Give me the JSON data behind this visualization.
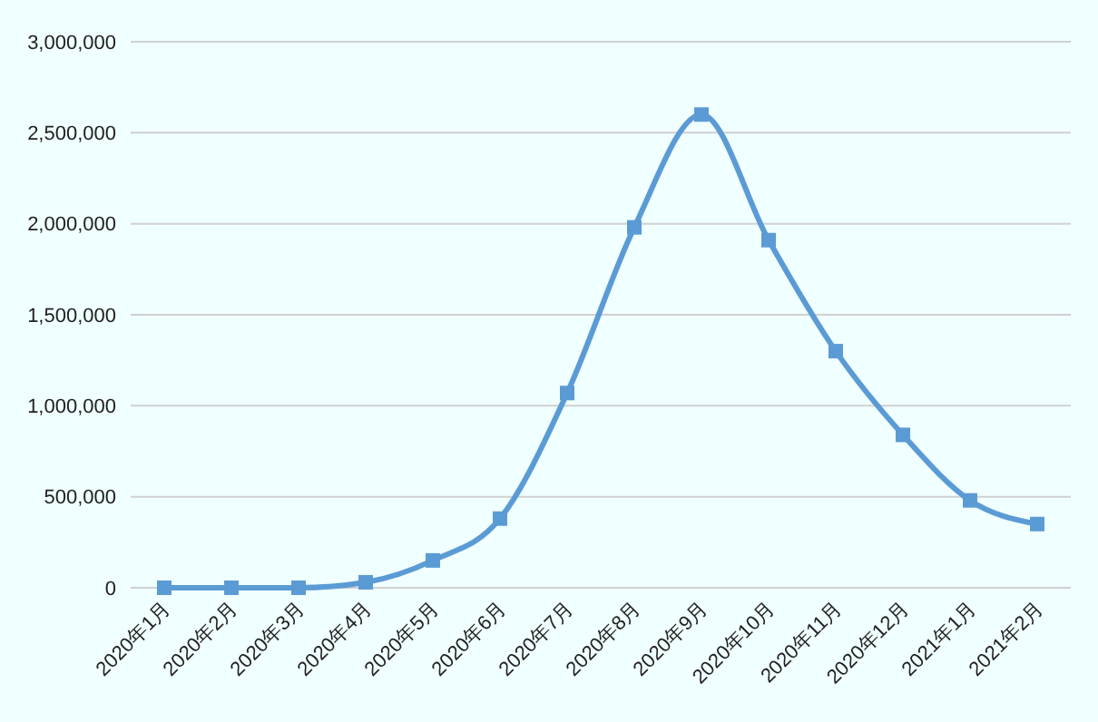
{
  "chart_data": {
    "type": "line",
    "categories": [
      "2020年1月",
      "2020年2月",
      "2020年3月",
      "2020年4月",
      "2020年5月",
      "2020年6月",
      "2020年7月",
      "2020年8月",
      "2020年9月",
      "2020年10月",
      "2020年11月",
      "2020年12月",
      "2021年1月",
      "2021年2月"
    ],
    "series": [
      {
        "color": "#5b9bd5",
        "values": [
          0,
          0,
          0,
          30000,
          150000,
          380000,
          1070000,
          1980000,
          2600000,
          1910000,
          1300000,
          840000,
          480000,
          350000
        ]
      }
    ],
    "ylim": [
      0,
      3000000
    ],
    "yticks": [
      {
        "value": 0,
        "label": "0"
      },
      {
        "value": 500000,
        "label": "500,000"
      },
      {
        "value": 1000000,
        "label": "1,000,000"
      },
      {
        "value": 1500000,
        "label": "1,500,000"
      },
      {
        "value": 2000000,
        "label": "2,000,000"
      },
      {
        "value": 2500000,
        "label": "2,500,000"
      },
      {
        "value": 3000000,
        "label": "3,000,000"
      }
    ],
    "grid": "y",
    "marker": "square",
    "line_style": "solid"
  }
}
